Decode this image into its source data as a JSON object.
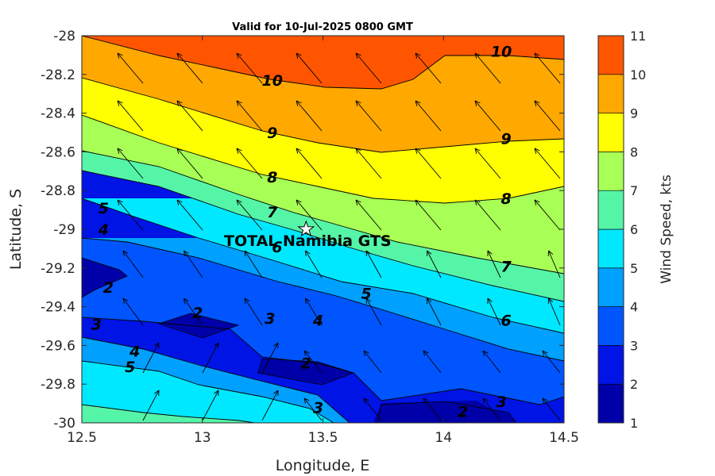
{
  "chart_data": {
    "type": "contour",
    "title": "Valid for 10-Jul-2025 0800 GMT",
    "xlabel": "Longitude, E",
    "ylabel": "Latitude, S",
    "xlim": [
      12.5,
      14.5
    ],
    "ylim": [
      -30,
      -28
    ],
    "x_ticks": [
      "12.5",
      "13",
      "13.5",
      "14",
      "14.5"
    ],
    "y_ticks": [
      "-28",
      "-28.2",
      "-28.4",
      "-28.6",
      "-28.8",
      "-29",
      "-29.2",
      "-29.4",
      "-29.6",
      "-29.8",
      "-30"
    ],
    "colorbar": {
      "label": "Wind Speed, kts",
      "ticks": [
        "1",
        "2",
        "3",
        "4",
        "5",
        "6",
        "7",
        "8",
        "9",
        "10",
        "11"
      ],
      "levels": [
        1,
        2,
        3,
        4,
        5,
        6,
        7,
        8,
        9,
        10,
        11
      ],
      "colors": [
        "#0000a8",
        "#0014e6",
        "#0055ff",
        "#00a0ff",
        "#00e8ff",
        "#55f5a8",
        "#a8ff55",
        "#ffff00",
        "#ffa800",
        "#ff5500"
      ]
    },
    "contour_labels": [
      {
        "text": "10",
        "lon": 13.29,
        "lat": -28.23
      },
      {
        "text": "10",
        "lon": 14.24,
        "lat": -28.08
      },
      {
        "text": "9",
        "lon": 13.29,
        "lat": -28.5
      },
      {
        "text": "9",
        "lon": 14.26,
        "lat": -28.53
      },
      {
        "text": "8",
        "lon": 13.29,
        "lat": -28.73
      },
      {
        "text": "8",
        "lon": 14.26,
        "lat": -28.84
      },
      {
        "text": "7",
        "lon": 13.29,
        "lat": -28.91
      },
      {
        "text": "7",
        "lon": 14.26,
        "lat": -29.19
      },
      {
        "text": "6",
        "lon": 13.31,
        "lat": -29.09
      },
      {
        "text": "6",
        "lon": 14.26,
        "lat": -29.47
      },
      {
        "text": "5",
        "lon": 12.59,
        "lat": -28.89
      },
      {
        "text": "5",
        "lon": 13.68,
        "lat": -29.33
      },
      {
        "text": "5",
        "lon": 12.7,
        "lat": -29.71
      },
      {
        "text": "4",
        "lon": 12.59,
        "lat": -29.0
      },
      {
        "text": "4",
        "lon": 13.48,
        "lat": -29.47
      },
      {
        "text": "4",
        "lon": 12.72,
        "lat": -29.63
      },
      {
        "text": "3",
        "lon": 12.56,
        "lat": -29.49
      },
      {
        "text": "3",
        "lon": 13.28,
        "lat": -29.46
      },
      {
        "text": "3",
        "lon": 13.48,
        "lat": -29.92
      },
      {
        "text": "3",
        "lon": 14.24,
        "lat": -29.89
      },
      {
        "text": "2",
        "lon": 12.61,
        "lat": -29.3
      },
      {
        "text": "2",
        "lon": 12.98,
        "lat": -29.43
      },
      {
        "text": "2",
        "lon": 13.43,
        "lat": -29.69
      },
      {
        "text": "2",
        "lon": 14.08,
        "lat": -29.94
      }
    ],
    "site": {
      "name": "TOTAL Namibia GTS",
      "lon": 13.43,
      "lat": -29.0
    }
  }
}
